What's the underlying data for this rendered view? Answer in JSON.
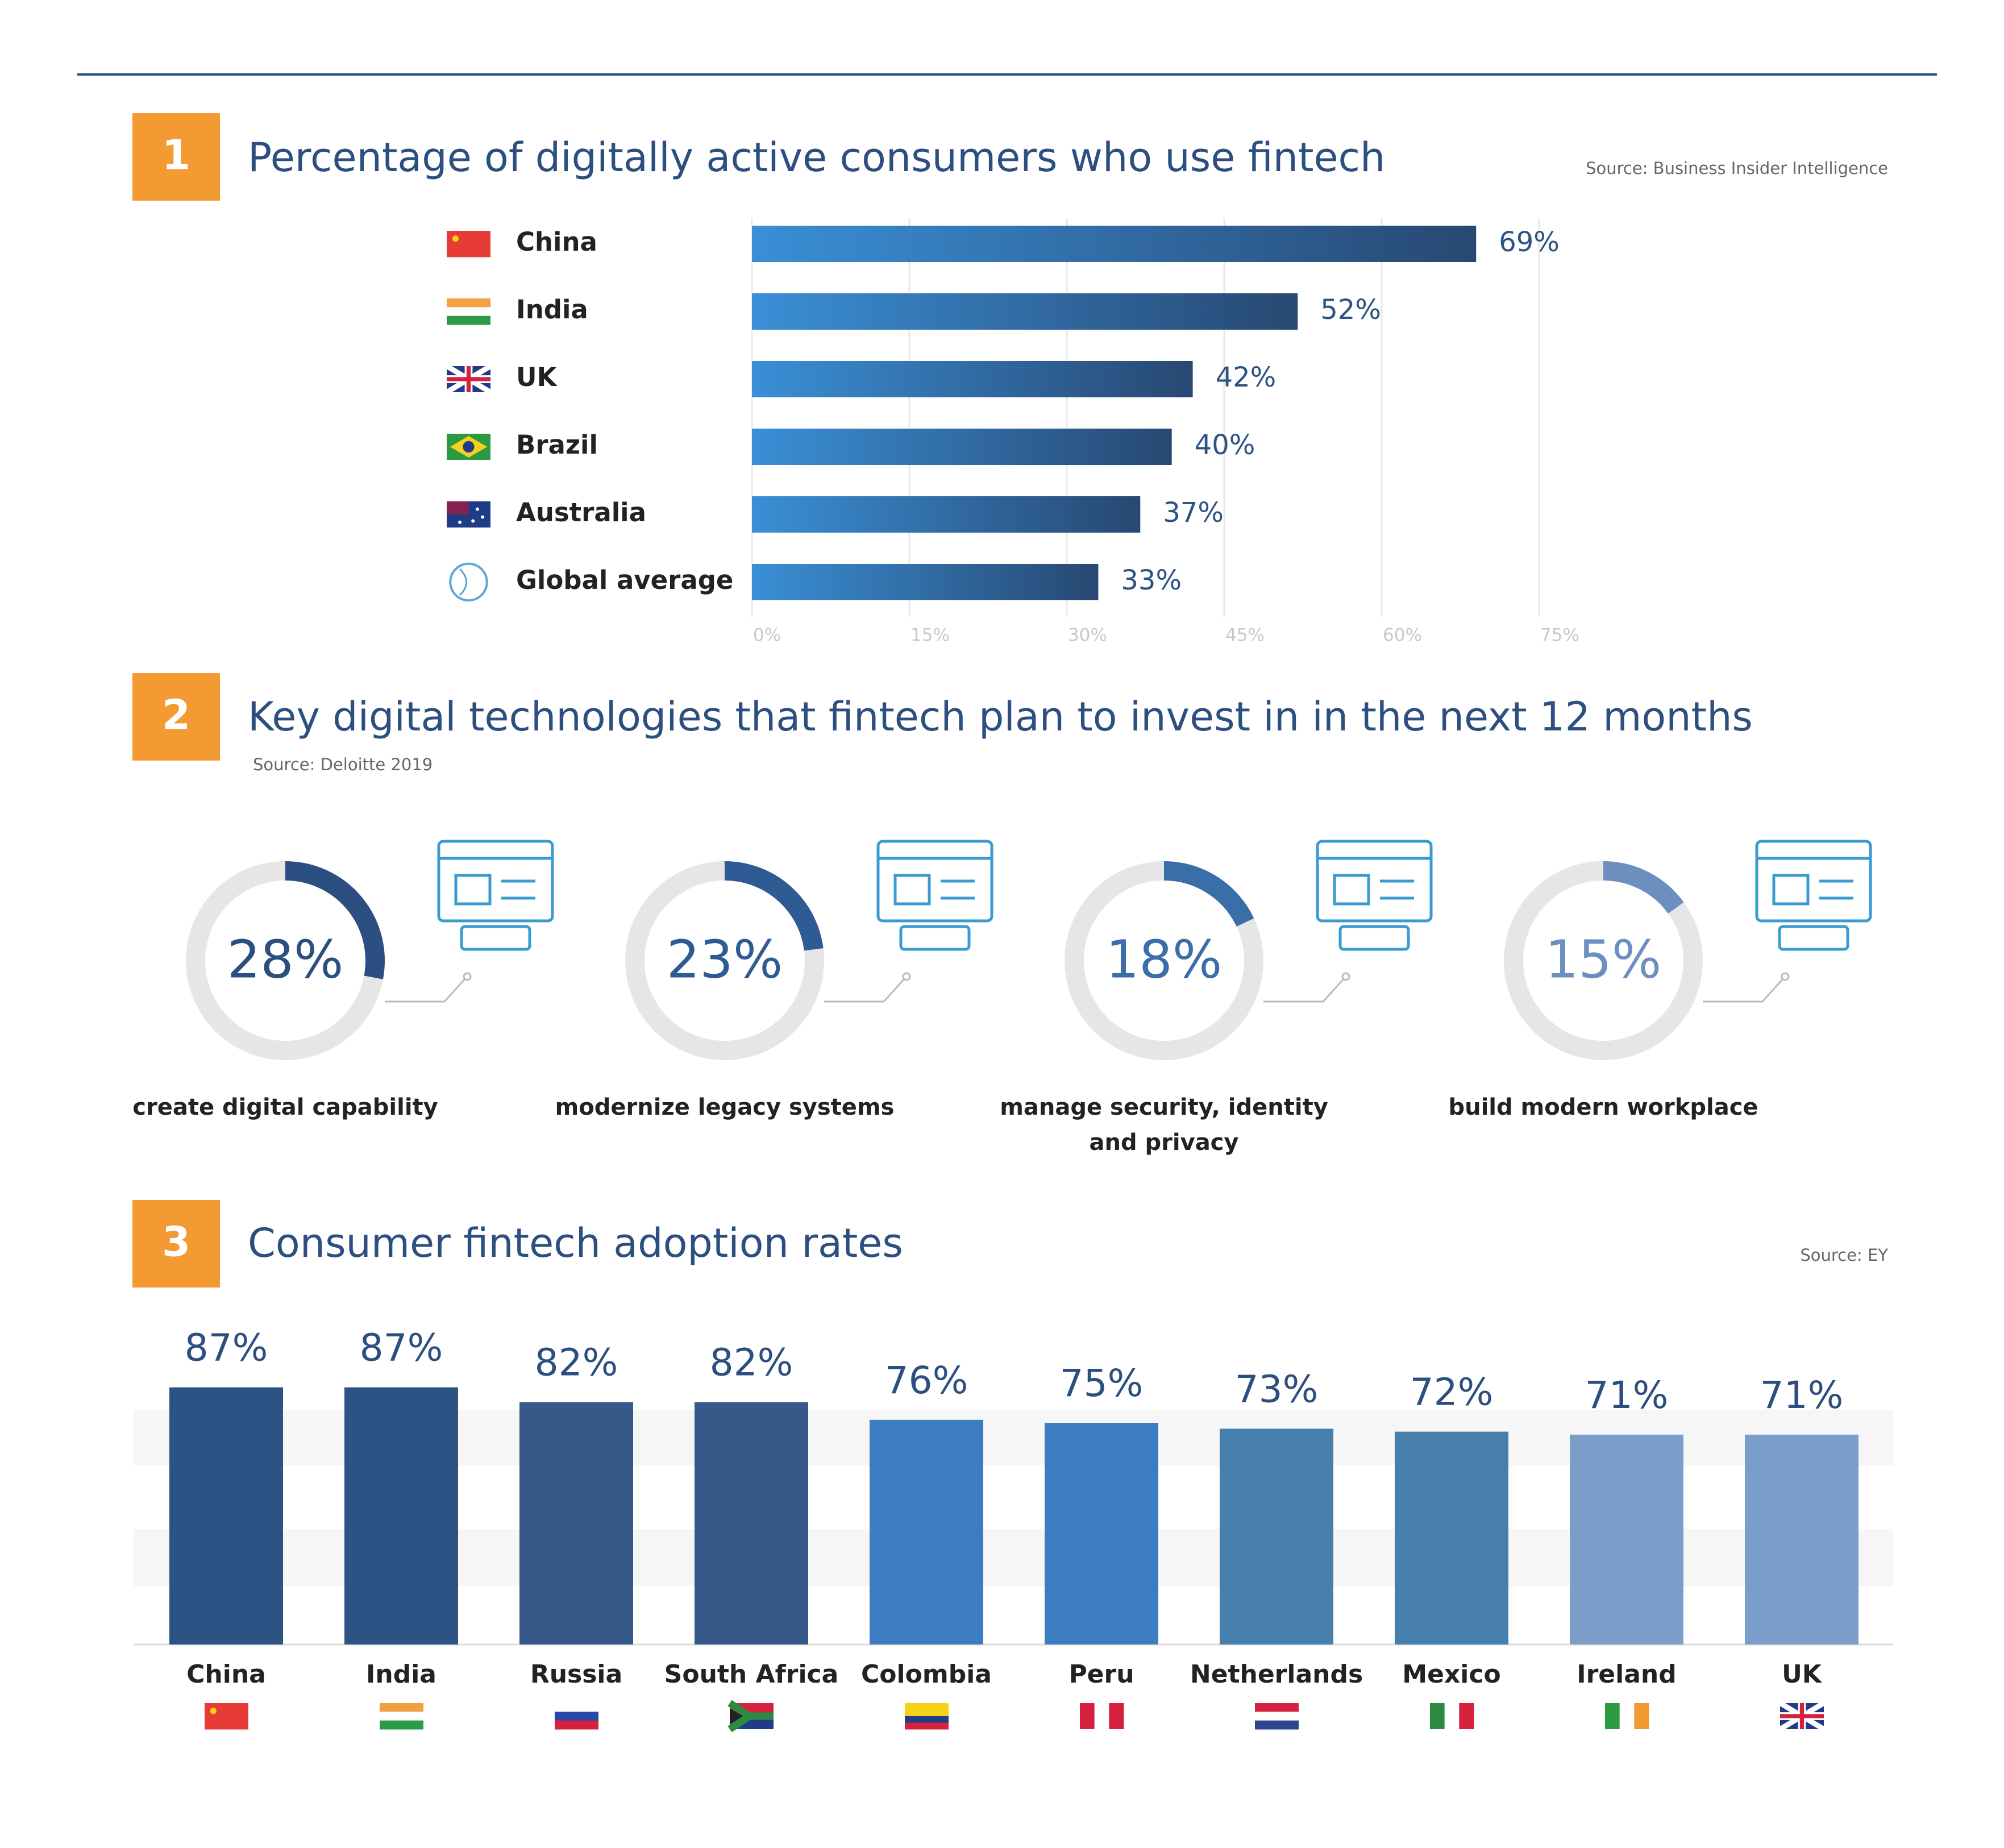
{
  "chart_data": [
    {
      "type": "hbar",
      "number": "1",
      "title": "Percentage of digitally active consumers who use fintech",
      "source": "Source: Business Insider Intelligence",
      "categories": [
        "China",
        "India",
        "UK",
        "Brazil",
        "Australia",
        "Global average"
      ],
      "values": [
        69,
        52,
        42,
        40,
        37,
        33
      ],
      "value_labels": [
        "69%",
        "52%",
        "42%",
        "40%",
        "37%",
        "33%"
      ],
      "xlim": [
        0,
        75
      ],
      "xticks": [
        {
          "value": 0,
          "label": "0%"
        },
        {
          "value": 15,
          "label": "15%"
        },
        {
          "value": 30,
          "label": "30%"
        },
        {
          "value": 45,
          "label": "45%"
        },
        {
          "value": 60,
          "label": "60%"
        },
        {
          "value": 75,
          "label": "75%"
        }
      ],
      "grid": true,
      "gradient": [
        "#3a8fd6",
        "#284872"
      ]
    },
    {
      "type": "donut",
      "number": "2",
      "title": "Key digital technologies that fintech plan to invest in in the next 12 months",
      "source": "Source: Deloitte 2019",
      "categories": [
        "create digital capability",
        "modernize legacy systems",
        "manage security, identity and privacy",
        "build modern workplace"
      ],
      "values": [
        28,
        23,
        18,
        15
      ],
      "value_labels": [
        "28%",
        "23%",
        "18%",
        "15%"
      ],
      "colors": [
        "#2b4f80",
        "#2f5b94",
        "#3a6ea8",
        "#6d8fc0"
      ]
    },
    {
      "type": "bar",
      "number": "3",
      "title": "Consumer fintech adoption rates",
      "source": "Source: EY",
      "categories": [
        "China",
        "India",
        "Russia",
        "South Africa",
        "Colombia",
        "Peru",
        "Netherlands",
        "Mexico",
        "Ireland",
        "UK"
      ],
      "values": [
        87,
        87,
        82,
        82,
        76,
        75,
        73,
        72,
        71,
        71
      ],
      "value_labels": [
        "87%",
        "87%",
        "82%",
        "82%",
        "76%",
        "75%",
        "73%",
        "72%",
        "71%",
        "71%"
      ],
      "colors": [
        "#2d5384",
        "#2d5384",
        "#36598a",
        "#36598a",
        "#3c7cc0",
        "#3c7cc0",
        "#467fab",
        "#467fab",
        "#7b9dc9",
        "#7b9dc9"
      ]
    }
  ]
}
